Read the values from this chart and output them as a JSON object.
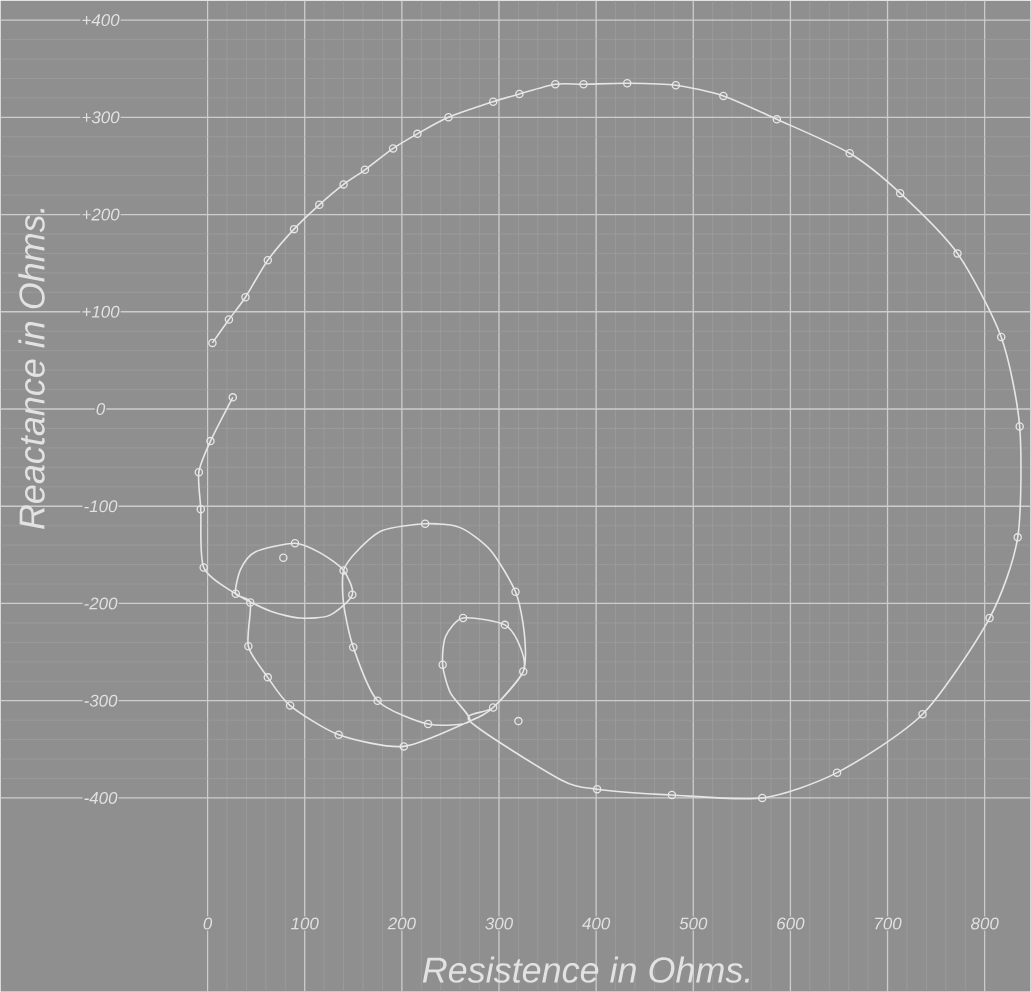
{
  "chart_data": {
    "type": "line",
    "xlabel": "Resistence in Ohms.",
    "ylabel": "Reactance in Ohms.",
    "xlim": [
      -213,
      847
    ],
    "ylim": [
      -599,
      420
    ],
    "xticks": [
      0,
      100,
      200,
      300,
      400,
      500,
      600,
      700,
      800
    ],
    "yticks": [
      {
        "value": 400,
        "label": "+400"
      },
      {
        "value": 300,
        "label": "+300"
      },
      {
        "value": 200,
        "label": "+200"
      },
      {
        "value": 100,
        "label": "+100"
      },
      0,
      -100,
      -200,
      -300,
      -400
    ],
    "grid": true,
    "series": [
      {
        "marker": "none",
        "color": "#e6e6e6",
        "x": [
          26,
          3,
          -9,
          -7,
          -4,
          29,
          65,
          96,
          126,
          149,
          140,
          116,
          90,
          49,
          34,
          29,
          44,
          42,
          62,
          85,
          135,
          202,
          270,
          294,
          325,
          326,
          317,
          291,
          260,
          224,
          180,
          155,
          140,
          140,
          150,
          175,
          227,
          270,
          250,
          242,
          245,
          263,
          306,
          322,
          325,
          294,
          270,
          363,
          401,
          478,
          571,
          648,
          736,
          805,
          834,
          836,
          817,
          772,
          713,
          661,
          586,
          531,
          482,
          432,
          387,
          358,
          321,
          294,
          248,
          216,
          191,
          162,
          140,
          115,
          89,
          62,
          39,
          22,
          5
        ],
        "values": [
          12,
          -33,
          -65,
          -103,
          -163,
          -190,
          -208,
          -215,
          -212,
          -191,
          -166,
          -148,
          -138,
          -147,
          -165,
          -190,
          -199,
          -244,
          -276,
          -305,
          -335,
          -347,
          -321,
          -307,
          -270,
          -230,
          -188,
          -145,
          -122,
          -118,
          -125,
          -145,
          -166,
          -200,
          -245,
          -300,
          -324,
          -321,
          -292,
          -263,
          -234,
          -215,
          -222,
          -245,
          -270,
          -307,
          -321,
          -381,
          -391,
          -397,
          -400,
          -374,
          -314,
          -215,
          -132,
          -18,
          74,
          160,
          222,
          263,
          298,
          322,
          333,
          335,
          334,
          334,
          324,
          316,
          300,
          283,
          268,
          246,
          231,
          210,
          185,
          153,
          115,
          92,
          68
        ]
      },
      {
        "type": "scatter",
        "marker": "circle",
        "color": "#e6e6e6",
        "x": [
          26,
          3,
          -9,
          -7,
          -4,
          29,
          44,
          78,
          90,
          140,
          149,
          42,
          62,
          85,
          135,
          202,
          224,
          317,
          150,
          175,
          227,
          263,
          306,
          242,
          325,
          294,
          320,
          401,
          478,
          571,
          648,
          736,
          805,
          834,
          836,
          817,
          772,
          713,
          661,
          586,
          531,
          482,
          432,
          387,
          358,
          321,
          294,
          248,
          216,
          191,
          162,
          140,
          115,
          89,
          62,
          39,
          22,
          5
        ],
        "values": [
          12,
          -33,
          -65,
          -103,
          -163,
          -190,
          -199,
          -153,
          -138,
          -166,
          -191,
          -244,
          -276,
          -305,
          -335,
          -347,
          -118,
          -188,
          -245,
          -300,
          -324,
          -215,
          -222,
          -263,
          -270,
          -307,
          -321,
          -391,
          -397,
          -400,
          -374,
          -314,
          -215,
          -132,
          -18,
          74,
          160,
          222,
          263,
          298,
          322,
          333,
          335,
          334,
          334,
          324,
          316,
          300,
          283,
          268,
          246,
          231,
          210,
          185,
          153,
          115,
          92,
          68
        ]
      }
    ]
  }
}
